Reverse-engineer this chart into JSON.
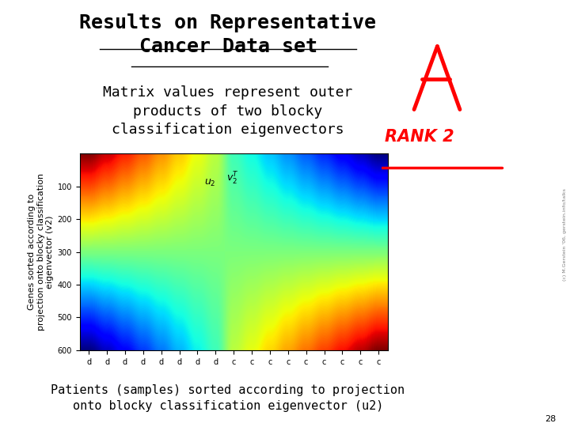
{
  "title": "Results on Representative\nCancer Data set",
  "subtitle": "Matrix values represent outer\nproducts of two blocky\nclassification eigenvectors",
  "xlabel": "Patients (samples) sorted according to projection\nonto blocky classification eigenvector (u2)",
  "ylabel": "Genes sorted according to\nprojection onto blocky classification\neigenvector (v2)",
  "yticks": [
    100,
    200,
    300,
    400,
    500,
    600
  ],
  "xtick_labels_left": [
    "d",
    "d",
    "d",
    "d",
    "d",
    "d",
    "d",
    "d"
  ],
  "xtick_labels_right": [
    "c",
    "c",
    "c",
    "c",
    "c",
    "c",
    "c",
    "c",
    "c"
  ],
  "n_rows": 600,
  "n_cols_d": 8,
  "n_cols_c": 9,
  "background_color": "#ffffff",
  "title_fontsize": 18,
  "subtitle_fontsize": 13,
  "axis_label_fontsize": 11,
  "watermark": "(c) M.Gerstein '06, gerstein.info/talks",
  "page_number": "28",
  "colormap": "jet"
}
